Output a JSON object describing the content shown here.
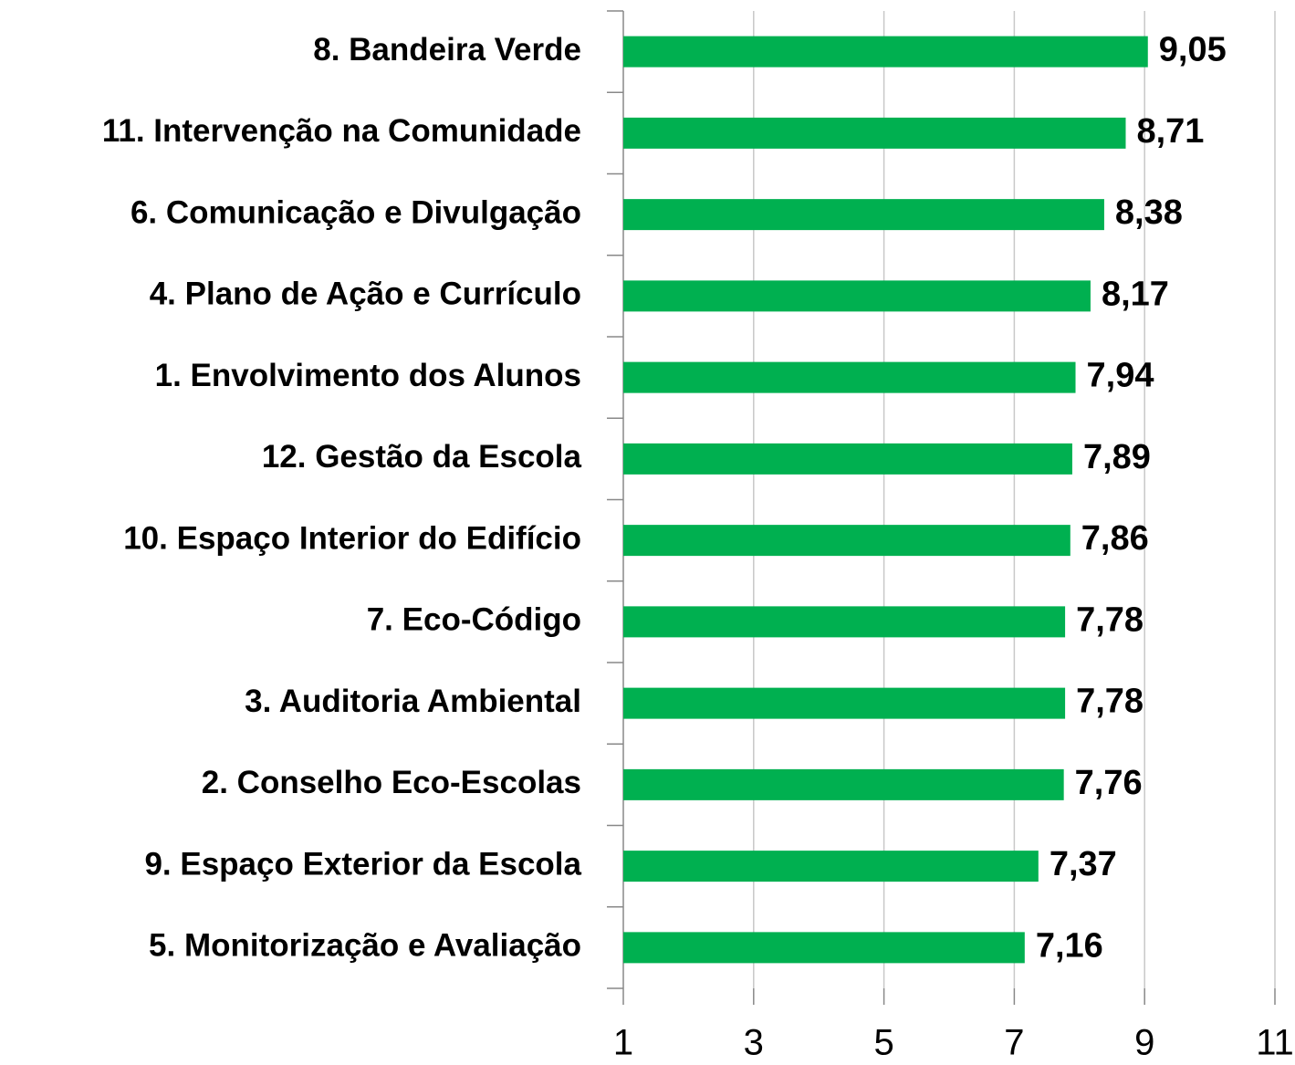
{
  "chart_data": {
    "type": "barh",
    "categories": [
      "8. Bandeira Verde",
      "11. Intervenção na Comunidade",
      "6. Comunicação e Divulgação",
      "4. Plano de Ação e Currículo",
      "1. Envolvimento dos Alunos",
      "12. Gestão da Escola",
      "10. Espaço Interior do Edifício",
      "7. Eco-Código",
      "3. Auditoria Ambiental",
      "2. Conselho Eco-Escolas",
      "9. Espaço Exterior da Escola",
      "5. Monitorização e Avaliação"
    ],
    "values": [
      9.05,
      8.71,
      8.38,
      8.17,
      7.94,
      7.89,
      7.86,
      7.78,
      7.78,
      7.76,
      7.37,
      7.16
    ],
    "value_labels": [
      "9,05",
      "8,71",
      "8,38",
      "8,17",
      "7,94",
      "7,89",
      "7,86",
      "7,78",
      "7,78",
      "7,76",
      "7,37",
      "7,16"
    ],
    "color": "#00b050",
    "xlim": [
      1,
      11
    ],
    "xticks": [
      1,
      3,
      5,
      7,
      9,
      11
    ],
    "grid": true
  }
}
